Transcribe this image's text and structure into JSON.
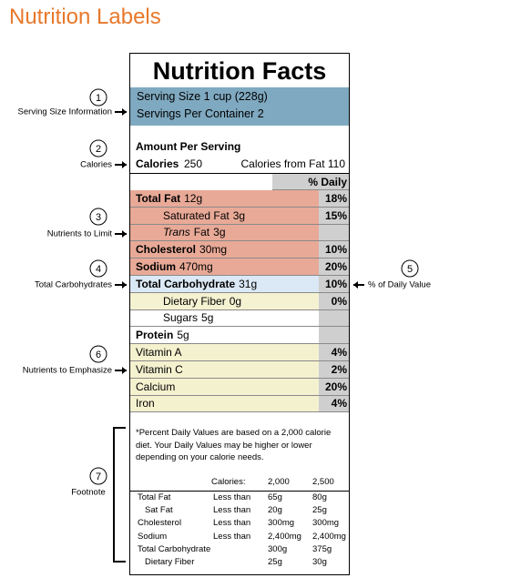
{
  "title": "Nutrition Labels",
  "label": {
    "heading": "Nutrition Facts",
    "serving_size": "Serving Size 1 cup (228g)",
    "servings_per_container": "Servings Per Container 2",
    "amount_per_serving": "Amount Per Serving",
    "calories": {
      "name": "Calories",
      "amount": "250"
    },
    "calories_from_fat": "Calories from Fat 110",
    "daily_value_header": "% Daily Value*",
    "nutrients": [
      {
        "name": "Total Fat",
        "amount": "12g",
        "dv": "18%",
        "bold": true,
        "indent": false,
        "group": "limit"
      },
      {
        "name": "Saturated Fat",
        "amount": "3g",
        "dv": "15%",
        "bold": false,
        "indent": true,
        "group": "limit"
      },
      {
        "italic": "Trans",
        "name": "Fat",
        "amount": "3g",
        "bold": false,
        "indent": true,
        "group": "limit"
      },
      {
        "name": "Cholesterol",
        "amount": "30mg",
        "dv": "10%",
        "bold": true,
        "indent": false,
        "group": "limit"
      },
      {
        "name": "Sodium",
        "amount": "470mg",
        "dv": "20%",
        "bold": true,
        "indent": false,
        "group": "limit"
      },
      {
        "name": "Total Carbohydrate",
        "amount": "31g",
        "dv": "10%",
        "bold": true,
        "indent": false,
        "group": "carbohydrate"
      },
      {
        "name": "Dietary Fiber",
        "amount": "0g",
        "dv": "0%",
        "bold": false,
        "indent": true,
        "group": "fiber"
      },
      {
        "name": "Sugars",
        "amount": "5g",
        "bold": false,
        "indent": true,
        "group": "plain"
      },
      {
        "name": "Protein",
        "amount": "5g",
        "bold": true,
        "indent": false,
        "group": "plain"
      },
      {
        "name": "Vitamin A",
        "dv": "4%",
        "bold": false,
        "indent": false,
        "group": "emphasize"
      },
      {
        "name": "Vitamin C",
        "dv": "2%",
        "bold": false,
        "indent": false,
        "group": "emphasize"
      },
      {
        "name": "Calcium",
        "dv": "20%",
        "bold": false,
        "indent": false,
        "group": "emphasize"
      },
      {
        "name": "Iron",
        "dv": "4%",
        "bold": false,
        "indent": false,
        "group": "emphasize"
      }
    ],
    "footnote": "*Percent Daily Values are based on a 2,000 calorie diet.  Your Daily Values may be higher or lower depending on your calorie needs.",
    "footnote_table": {
      "columns_label": "Calories:",
      "columns": [
        "2,000",
        "2,500"
      ],
      "rows": [
        {
          "name": "Total Fat",
          "qualifier": "Less than",
          "values": [
            "65g",
            "80g"
          ],
          "indent": false
        },
        {
          "name": "Sat Fat",
          "qualifier": "Less than",
          "values": [
            "20g",
            "25g"
          ],
          "indent": true
        },
        {
          "name": "Cholesterol",
          "qualifier": "Less than",
          "values": [
            "300mg",
            "300mg"
          ],
          "indent": false
        },
        {
          "name": "Sodium",
          "qualifier": "Less than",
          "values": [
            "2,400mg",
            "2,400mg"
          ],
          "indent": false
        },
        {
          "name": "Total Carbohydrate",
          "values": [
            "300g",
            "375g"
          ],
          "indent": false
        },
        {
          "name": "Dietary Fiber",
          "values": [
            "25g",
            "30g"
          ],
          "indent": true
        }
      ]
    }
  },
  "annotations": [
    {
      "number": "1",
      "text": "Serving Size Information"
    },
    {
      "number": "2",
      "text": "Calories"
    },
    {
      "number": "3",
      "text": "Nutrients to Limit"
    },
    {
      "number": "4",
      "text": "Total Carbohydrates"
    },
    {
      "number": "5",
      "text": "% of Daily Value"
    },
    {
      "number": "6",
      "text": "Nutrients to Emphasize"
    },
    {
      "number": "7",
      "text": "Footnote"
    }
  ]
}
